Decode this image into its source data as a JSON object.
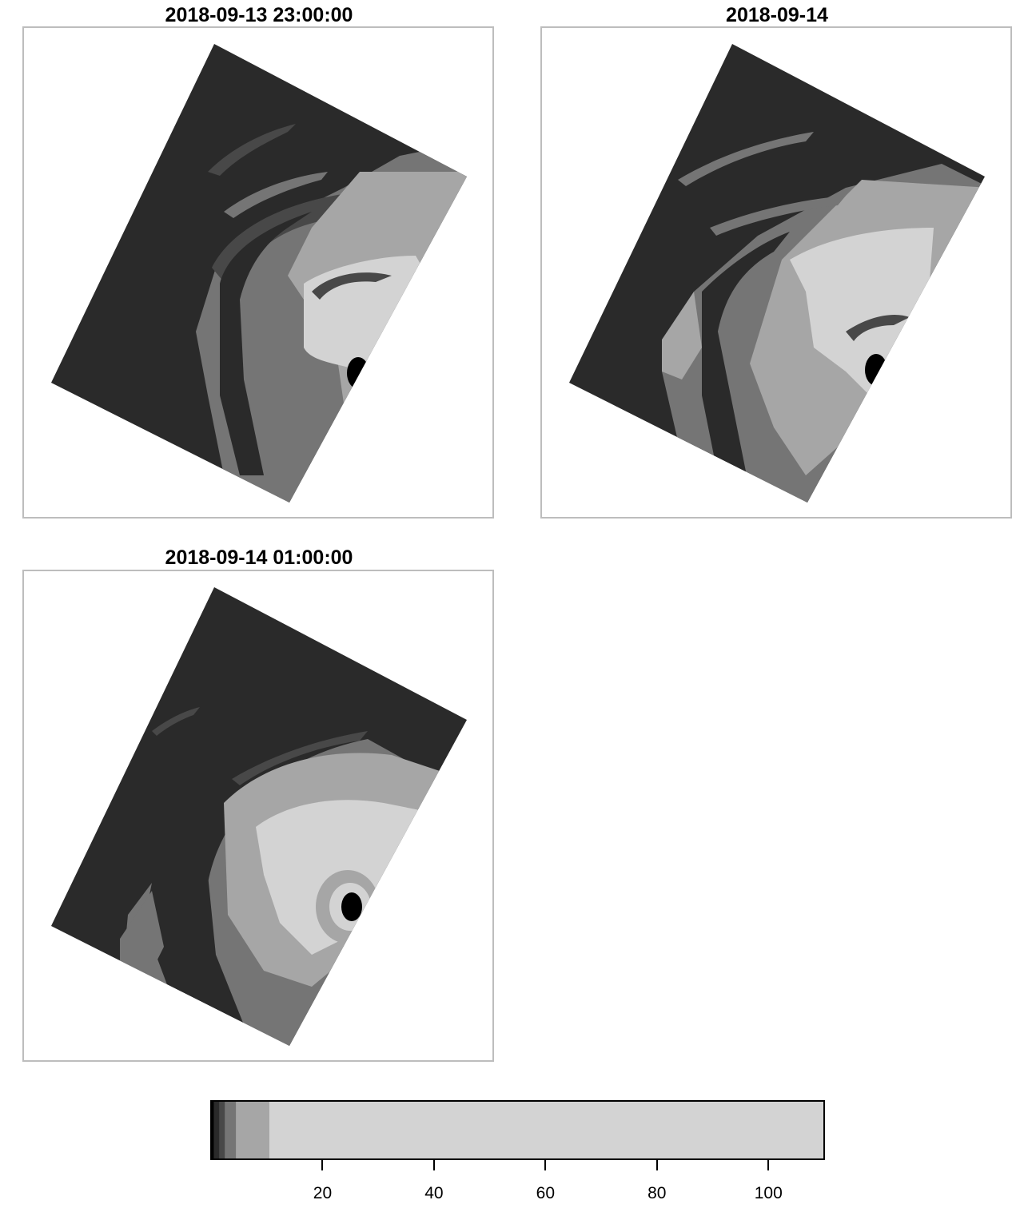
{
  "panels": [
    {
      "title": "2018-09-13 23:00:00",
      "scene": "t2300"
    },
    {
      "title": "2018-09-14",
      "scene": "t0000"
    },
    {
      "title": "2018-09-14 01:00:00",
      "scene": "t0100"
    }
  ],
  "legend": {
    "range": [
      0,
      110
    ],
    "breaks": [
      0,
      0.5,
      1.5,
      2.5,
      4.5,
      10.5,
      110
    ],
    "colors": [
      "#000000",
      "#2a2a2a",
      "#484848",
      "#757575",
      "#a6a6a6",
      "#d3d3d3"
    ],
    "ticks": [
      "20",
      "40",
      "60",
      "80",
      "100"
    ]
  },
  "colors": {
    "background": "#2a2a2a",
    "dark": "#484848",
    "mid": "#757575",
    "light": "#a6a6a6",
    "bright": "#d3d3d3",
    "eye": "#000000",
    "frame": "#bdbdbd"
  }
}
